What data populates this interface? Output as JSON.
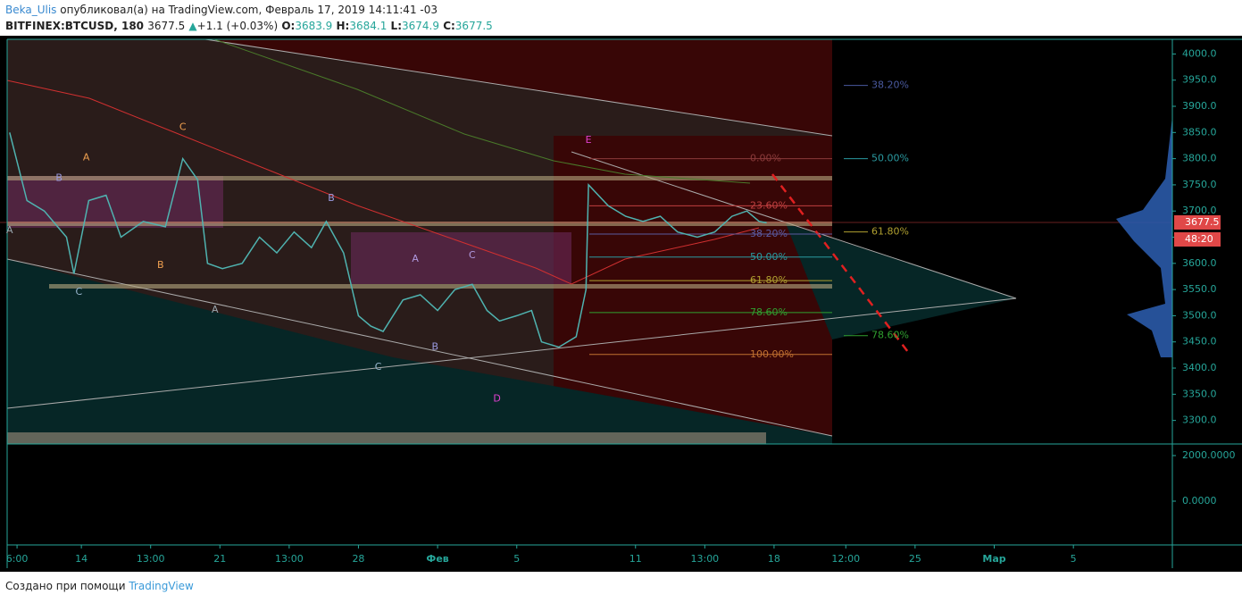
{
  "header": {
    "author": "Beka_Ulis",
    "published": "опубликовал(а) на TradingView.com, Февраль 17, 2019 14:11:41 -03",
    "symbol": "BITFINEX:BTCUSD, 180",
    "last": "3677.5",
    "arrow": "▲",
    "change": "+1.1 (+0.03%)",
    "o_label": "O:",
    "o": "3683.9",
    "h_label": "H:",
    "h": "3684.1",
    "l_label": "L:",
    "l": "3674.9",
    "c_label": "C:",
    "c": "3677.5"
  },
  "footer": {
    "text": "Создано при помощи",
    "brand": "TradingView"
  },
  "chart_data": {
    "type": "line",
    "xlim": [
      0,
      471
    ],
    "ylim": [
      3255,
      4028
    ],
    "x": [
      1,
      8,
      15,
      24,
      27,
      33,
      40,
      46,
      55,
      64,
      71,
      77,
      81,
      87,
      95,
      102,
      109,
      116,
      123,
      129,
      136,
      142,
      147,
      152,
      160,
      167,
      174,
      181,
      188,
      194,
      199,
      206,
      212,
      216,
      223,
      230,
      234,
      235,
      243,
      250,
      257,
      264,
      271,
      279,
      286,
      293,
      299,
      304,
      307
    ],
    "series": [
      {
        "color": "#4fb3b0",
        "values": [
          3850,
          3720,
          3700,
          3650,
          3580,
          3720,
          3730,
          3650,
          3680,
          3670,
          3800,
          3760,
          3600,
          3590,
          3600,
          3650,
          3620,
          3660,
          3630,
          3680,
          3620,
          3500,
          3480,
          3470,
          3530,
          3540,
          3510,
          3550,
          3560,
          3510,
          3490,
          3500,
          3510,
          3450,
          3440,
          3460,
          3550,
          3750,
          3710,
          3690,
          3680,
          3690,
          3660,
          3650,
          3660,
          3690,
          3700,
          3680,
          3677.5
        ]
      }
    ],
    "yticks": [
      {
        "value": 4000,
        "label": "4000.0"
      },
      {
        "value": 3950,
        "label": "3950.0"
      },
      {
        "value": 3900,
        "label": "3900.0"
      },
      {
        "value": 3850,
        "label": "3850.0"
      },
      {
        "value": 3800,
        "label": "3800.0"
      },
      {
        "value": 3750,
        "label": "3750.0"
      },
      {
        "value": 3700,
        "label": "3700.0"
      },
      {
        "value": 3650,
        "label": "3650.0"
      },
      {
        "value": 3600,
        "label": "3600.0"
      },
      {
        "value": 3550,
        "label": "3550.0"
      },
      {
        "value": 3500,
        "label": "3500.0"
      },
      {
        "value": 3450,
        "label": "3450.0"
      },
      {
        "value": 3400,
        "label": "3400.0"
      },
      {
        "value": 3350,
        "label": "3350.0"
      },
      {
        "value": 3300,
        "label": "3300.0"
      }
    ],
    "xticks": [
      {
        "value": 4,
        "label": "6:00"
      },
      {
        "value": 30,
        "label": "14"
      },
      {
        "value": 58,
        "label": "13:00"
      },
      {
        "value": 86,
        "label": "21"
      },
      {
        "value": 114,
        "label": "13:00"
      },
      {
        "value": 142,
        "label": "28"
      },
      {
        "value": 174,
        "label": "Фев"
      },
      {
        "value": 206,
        "label": "5"
      },
      {
        "value": 254,
        "label": "11"
      },
      {
        "value": 282,
        "label": "13:00"
      },
      {
        "value": 310,
        "label": "18"
      },
      {
        "value": 339,
        "label": "12:00"
      },
      {
        "value": 367,
        "label": "25"
      },
      {
        "value": 399,
        "label": "Мар"
      },
      {
        "value": 431,
        "label": "5"
      }
    ],
    "y2lim": [
      -1920,
      2430
    ],
    "y2ticks": [
      {
        "value": 2000,
        "label": "2000.0000"
      },
      {
        "value": 0,
        "label": "0.0000"
      }
    ],
    "price_tags": [
      "3677.5",
      "48:20"
    ],
    "annotations": [
      {
        "text": "A",
        "x": 1,
        "y": 3663,
        "color": "#9aa8b0"
      },
      {
        "text": "B",
        "x": 21,
        "y": 3763,
        "color": "#9a9ae0"
      },
      {
        "text": "A",
        "x": 32,
        "y": 3802,
        "color": "#f0a050"
      },
      {
        "text": "C",
        "x": 29,
        "y": 3545,
        "color": "#9ab8d0"
      },
      {
        "text": "B",
        "x": 62,
        "y": 3596,
        "color": "#f0a050"
      },
      {
        "text": "C",
        "x": 71,
        "y": 3860,
        "color": "#f0a050"
      },
      {
        "text": "A",
        "x": 84,
        "y": 3511,
        "color": "#9aa8b0"
      },
      {
        "text": "B",
        "x": 131,
        "y": 3724,
        "color": "#9a9ae0"
      },
      {
        "text": "A",
        "x": 165,
        "y": 3608,
        "color": "#b09ae0"
      },
      {
        "text": "C",
        "x": 188,
        "y": 3615,
        "color": "#b09ae0"
      },
      {
        "text": "C",
        "x": 150,
        "y": 3402,
        "color": "#9ab8d0"
      },
      {
        "text": "B",
        "x": 173,
        "y": 3440,
        "color": "#9a9ae0"
      },
      {
        "text": "E",
        "x": 235,
        "y": 3835,
        "color": "#e040d0"
      },
      {
        "text": "D",
        "x": 198,
        "y": 3341,
        "color": "#e040d0"
      }
    ],
    "fib_left": [
      {
        "label": "0.00%",
        "price": 3800,
        "color": "#8a3a3a"
      },
      {
        "label": "23.60%",
        "price": 3710,
        "color": "#c04040"
      },
      {
        "label": "38.20%",
        "price": 3656,
        "color": "#5a5aa0"
      },
      {
        "label": "50.00%",
        "price": 3612,
        "color": "#2a9aa0"
      },
      {
        "label": "61.80%",
        "price": 3567,
        "color": "#b0a030"
      },
      {
        "label": "78.60%",
        "price": 3506,
        "color": "#30a030"
      },
      {
        "label": "100.00%",
        "price": 3426,
        "color": "#c07030"
      }
    ],
    "fib_right": [
      {
        "label": "38.20%",
        "price": 3940,
        "color": "#4a5aa0"
      },
      {
        "label": "50.00%",
        "price": 3800,
        "color": "#2a9aa0"
      },
      {
        "label": "61.80%",
        "price": 3660,
        "color": "#b0a030"
      },
      {
        "label": "78.60%",
        "price": 3462,
        "color": "#30a030"
      }
    ]
  }
}
